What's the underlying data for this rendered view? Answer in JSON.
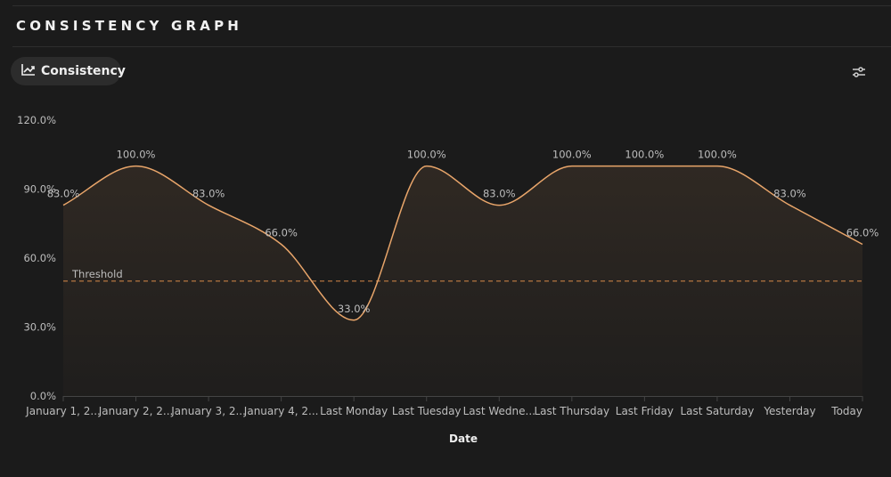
{
  "header": {
    "title": "CONSISTENCY GRAPH"
  },
  "toolbar": {
    "tab_label": "Consistency",
    "tab_icon": "trending-up-icon",
    "filter_icon": "sliders-icon"
  },
  "colors": {
    "line": "#e8a56a",
    "threshold": "#d98a4a",
    "background": "#1b1b1b"
  },
  "chart_data": {
    "type": "area",
    "categories": [
      "January 1, 2...",
      "January 2, 2...",
      "January 3, 2...",
      "January 4, 2...",
      "Last Monday",
      "Last Tuesday",
      "Last Wedne...",
      "Last Thursday",
      "Last Friday",
      "Last Saturday",
      "Yesterday",
      "Today"
    ],
    "values": [
      83,
      100,
      83,
      66,
      33,
      100,
      83,
      100,
      100,
      100,
      83,
      66
    ],
    "data_labels": [
      "83.0%",
      "100.0%",
      "83.0%",
      "66.0%",
      "33.0%",
      "100.0%",
      "83.0%",
      "100.0%",
      "100.0%",
      "100.0%",
      "83.0%",
      "66.0%"
    ],
    "xlabel": "Date",
    "ylabel": "",
    "ylim": [
      0,
      120
    ],
    "yticks": [
      "0.0%",
      "30.0%",
      "60.0%",
      "90.0%",
      "120.0%"
    ],
    "threshold": {
      "value": 50,
      "label": "Threshold"
    },
    "grid": false,
    "legend": "none"
  }
}
